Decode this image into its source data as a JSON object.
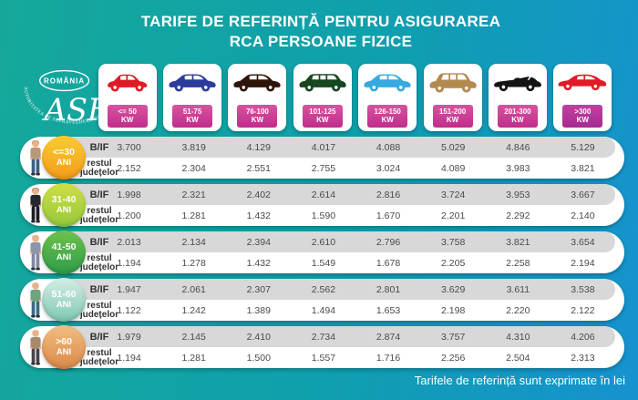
{
  "title": {
    "line1": "TARIFE DE REFERINȚĂ PENTRU ASIGURAREA",
    "line2": "RCA PERSOANE FIZICE"
  },
  "logo": {
    "country": "ROMÂNIA",
    "monogram": "ASF",
    "ring_text": "AUTORITATEA DE SUPRAVEGHERE FINANCIARĂ"
  },
  "footer": {
    "note": "Tarifele de referință sunt exprimate în lei"
  },
  "labels": {
    "bif": "B/IF",
    "rest_line1": "restul",
    "rest_line2": "județelor"
  },
  "columns": [
    {
      "power": "<= 50",
      "unit": "KW",
      "car_type": "hatchback",
      "car_color": "#e01b26",
      "badge_from": "#d6549f",
      "badge_to": "#c02d8c"
    },
    {
      "power": "51-75",
      "unit": "KW",
      "car_type": "sedan",
      "car_color": "#2c3c9c",
      "badge_from": "#d6549f",
      "badge_to": "#c02d8c"
    },
    {
      "power": "76-100",
      "unit": "KW",
      "car_type": "sedan",
      "car_color": "#2e1509",
      "badge_from": "#d6549f",
      "badge_to": "#c02d8c"
    },
    {
      "power": "101-125",
      "unit": "KW",
      "car_type": "wagon",
      "car_color": "#17471f",
      "badge_from": "#d6549f",
      "badge_to": "#c02d8c"
    },
    {
      "power": "126-150",
      "unit": "KW",
      "car_type": "sedan",
      "car_color": "#36a9e1",
      "badge_from": "#d6549f",
      "badge_to": "#c02d8c"
    },
    {
      "power": "151-200",
      "unit": "KW",
      "car_type": "suv",
      "car_color": "#b28a50",
      "badge_from": "#d6549f",
      "badge_to": "#c02d8c"
    },
    {
      "power": "201-300",
      "unit": "KW",
      "car_type": "convertible",
      "car_color": "#141414",
      "badge_from": "#d6549f",
      "badge_to": "#c02d8c"
    },
    {
      "power": ">300",
      "unit": "KW",
      "car_type": "sports",
      "car_color": "#e01b26",
      "badge_from": "#c2419f",
      "badge_to": "#a62a93"
    }
  ],
  "rows": [
    {
      "age_line1": "<=30",
      "age_line2": "ANI",
      "person_icon": "young-man-icon",
      "badge_from": "#f9cb32",
      "badge_to": "#f49c1a",
      "bif": [
        "3.700",
        "3.819",
        "4.129",
        "4.017",
        "4.088",
        "5.029",
        "4.846",
        "5.129"
      ],
      "rest": [
        "2.152",
        "2.304",
        "2.551",
        "2.755",
        "3.024",
        "4.089",
        "3.983",
        "3.821"
      ]
    },
    {
      "age_line1": "31-40",
      "age_line2": "ANI",
      "person_icon": "black-suit-man-icon",
      "badge_from": "#cede44",
      "badge_to": "#97c93d",
      "bif": [
        "1.998",
        "2.321",
        "2.402",
        "2.614",
        "2.816",
        "3.724",
        "3.953",
        "3.667"
      ],
      "rest": [
        "1.200",
        "1.281",
        "1.432",
        "1.590",
        "1.670",
        "2.201",
        "2.292",
        "2.140"
      ]
    },
    {
      "age_line1": "41-50",
      "age_line2": "ANI",
      "person_icon": "gray-suit-man-icon",
      "badge_from": "#6fc04d",
      "badge_to": "#2f9d49",
      "bif": [
        "2.013",
        "2.134",
        "2.394",
        "2.610",
        "2.796",
        "3.758",
        "3.821",
        "3.654"
      ],
      "rest": [
        "1.194",
        "1.278",
        "1.432",
        "1.549",
        "1.678",
        "2.205",
        "2.258",
        "2.194"
      ]
    },
    {
      "age_line1": "51-60",
      "age_line2": "ANI",
      "person_icon": "green-vest-man-icon",
      "badge_from": "#d4ece4",
      "badge_to": "#7fc9b4",
      "bif": [
        "1.947",
        "2.061",
        "2.307",
        "2.562",
        "2.801",
        "3.629",
        "3.611",
        "3.538"
      ],
      "rest": [
        "1.122",
        "1.242",
        "1.389",
        "1.494",
        "1.653",
        "2.198",
        "2.220",
        "2.122"
      ]
    },
    {
      "age_line1": ">60",
      "age_line2": "ANI",
      "person_icon": "elderly-man-icon",
      "badge_from": "#f0bd83",
      "badge_to": "#dc8947",
      "bif": [
        "1.979",
        "2.145",
        "2.410",
        "2.734",
        "2.874",
        "3.757",
        "4.310",
        "4.206"
      ],
      "rest": [
        "1.194",
        "1.281",
        "1.500",
        "1.557",
        "1.716",
        "2.256",
        "2.504",
        "2.313"
      ]
    }
  ],
  "chart_data": {
    "type": "table",
    "title": "TARIFE DE REFERINȚĂ PENTRU ASIGURAREA RCA PERSOANE FIZICE",
    "unit_note": "Tarifele de referință sunt exprimate în lei",
    "columns_kw": [
      "<= 50",
      "51-75",
      "76-100",
      "101-125",
      "126-150",
      "151-200",
      "201-300",
      ">300"
    ],
    "region_labels": [
      "B/IF",
      "restul județelor"
    ],
    "age_groups": [
      {
        "age": "<=30 ANI",
        "B_IF": [
          3700,
          3819,
          4129,
          4017,
          4088,
          5029,
          4846,
          5129
        ],
        "restul_judetelor": [
          2152,
          2304,
          2551,
          2755,
          3024,
          4089,
          3983,
          3821
        ]
      },
      {
        "age": "31-40 ANI",
        "B_IF": [
          1998,
          2321,
          2402,
          2614,
          2816,
          3724,
          3953,
          3667
        ],
        "restul_judetelor": [
          1200,
          1281,
          1432,
          1590,
          1670,
          2201,
          2292,
          2140
        ]
      },
      {
        "age": "41-50 ANI",
        "B_IF": [
          2013,
          2134,
          2394,
          2610,
          2796,
          3758,
          3821,
          3654
        ],
        "restul_judetelor": [
          1194,
          1278,
          1432,
          1549,
          1678,
          2205,
          2258,
          2194
        ]
      },
      {
        "age": "51-60 ANI",
        "B_IF": [
          1947,
          2061,
          2307,
          2562,
          2801,
          3629,
          3611,
          3538
        ],
        "restul_judetelor": [
          1122,
          1242,
          1389,
          1494,
          1653,
          2198,
          2220,
          2122
        ]
      },
      {
        "age": ">60 ANI",
        "B_IF": [
          1979,
          2145,
          2410,
          2734,
          2874,
          3757,
          4310,
          4206
        ],
        "restul_judetelor": [
          1194,
          1281,
          1500,
          1557,
          1716,
          2256,
          2504,
          2313
        ]
      }
    ]
  }
}
